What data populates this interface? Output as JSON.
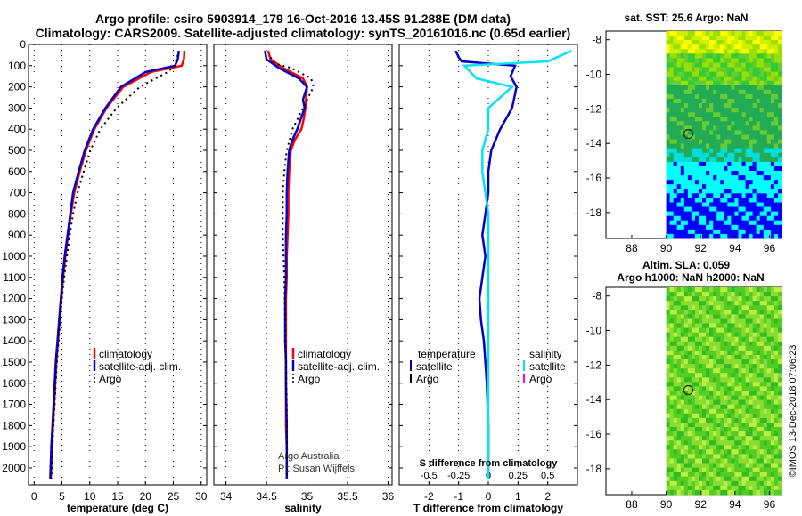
{
  "header": {
    "title_line1": "Argo profile: csiro 5903914_179 16-Oct-2016 13.45S 91.288E (DM data)",
    "title_line2": "Climatology: CARS2009. Satellite-adjusted climatology: synTS_20161016.nc (0.65d earlier)"
  },
  "watermark": "©IMOS 13-Dec-2018 07:06:23",
  "colors": {
    "climatology": "#ff0000",
    "satellite": "#0000cc",
    "argo": "#000000",
    "sal_satellite": "#00e5ee",
    "sal_argo": "#ff00ff"
  },
  "chart_data": [
    {
      "type": "line",
      "id": "temperature",
      "xlabel": "temperature (deg C)",
      "xlim": [
        -1,
        31
      ],
      "ylim": [
        2080,
        0
      ],
      "xticks": [
        0,
        5,
        10,
        15,
        20,
        25,
        30
      ],
      "yticks": [
        0,
        100,
        200,
        300,
        400,
        500,
        600,
        700,
        800,
        900,
        1000,
        1100,
        1200,
        1300,
        1400,
        1500,
        1600,
        1700,
        1800,
        1900,
        2000
      ],
      "legend": [
        "climatology",
        "satellite-adj. clim.",
        "Argo"
      ],
      "series": [
        {
          "name": "climatology",
          "style": "red",
          "x": [
            27.0,
            26.9,
            26.5,
            21.0,
            16.0,
            13.0,
            10.8,
            9.3,
            8.2,
            7.2,
            6.6,
            6.1,
            5.6,
            5.2,
            4.9,
            4.6,
            4.3,
            4.0,
            3.8,
            3.6,
            3.4,
            3.2,
            3.0
          ],
          "y": [
            30,
            70,
            100,
            130,
            200,
            300,
            400,
            500,
            600,
            700,
            800,
            900,
            1000,
            1100,
            1200,
            1300,
            1400,
            1500,
            1600,
            1700,
            1800,
            1900,
            2050
          ]
        },
        {
          "name": "satellite-adj. clim.",
          "style": "blue",
          "x": [
            26.0,
            25.8,
            25.3,
            20.0,
            15.6,
            12.8,
            10.6,
            9.1,
            8.0,
            7.0,
            6.5,
            6.0,
            5.5,
            5.1,
            4.8,
            4.5,
            4.2,
            3.9,
            3.7,
            3.5,
            3.3,
            3.1,
            2.9
          ],
          "y": [
            30,
            70,
            100,
            130,
            200,
            300,
            400,
            500,
            600,
            700,
            800,
            900,
            1000,
            1100,
            1200,
            1300,
            1400,
            1500,
            1600,
            1700,
            1800,
            1900,
            2050
          ]
        },
        {
          "name": "Argo",
          "style": "black",
          "x": [
            25.8,
            25.6,
            25.2,
            24.0,
            19.0,
            14.8,
            11.9,
            10.1,
            8.9,
            7.8,
            7.0,
            6.4,
            5.9,
            5.4,
            5.0,
            4.7,
            4.4,
            4.1,
            3.9,
            3.7,
            3.5,
            3.3,
            3.1
          ],
          "y": [
            50,
            70,
            100,
            130,
            200,
            300,
            400,
            500,
            600,
            700,
            800,
            900,
            1000,
            1100,
            1200,
            1300,
            1400,
            1500,
            1600,
            1700,
            1800,
            1900,
            2050
          ]
        }
      ]
    },
    {
      "type": "line",
      "id": "salinity",
      "xlabel": "salinity",
      "xlim": [
        33.85,
        36.05
      ],
      "ylim": [
        2080,
        0
      ],
      "xticks": [
        34,
        34.5,
        35,
        35.5,
        36
      ],
      "legend": [
        "climatology",
        "satellite-adj. clim.",
        "Argo"
      ],
      "annotation": [
        "Argo Australia",
        "PI: Susan Wijffels"
      ],
      "series": [
        {
          "name": "climatology",
          "style": "red",
          "x": [
            34.52,
            34.55,
            34.7,
            34.95,
            35.0,
            34.98,
            34.96,
            34.93,
            34.85,
            34.8,
            34.78,
            34.77,
            34.77,
            34.76,
            34.75,
            34.75,
            34.74,
            34.74,
            34.74,
            34.74,
            34.74,
            34.74,
            34.75,
            34.75
          ],
          "y": [
            30,
            70,
            110,
            160,
            200,
            300,
            350,
            400,
            450,
            500,
            600,
            700,
            800,
            900,
            1000,
            1100,
            1200,
            1300,
            1400,
            1500,
            1600,
            1800,
            1900,
            2050
          ]
        },
        {
          "name": "satellite-adj. clim.",
          "style": "blue",
          "x": [
            34.48,
            34.5,
            34.65,
            34.9,
            35.0,
            34.95,
            34.97,
            34.88,
            34.82,
            34.78,
            34.76,
            34.75,
            34.75,
            34.74,
            34.74,
            34.74,
            34.73,
            34.73,
            34.73,
            34.74,
            34.74,
            34.75,
            34.75
          ],
          "y": [
            30,
            70,
            110,
            160,
            200,
            260,
            300,
            400,
            450,
            500,
            600,
            700,
            800,
            900,
            1000,
            1100,
            1200,
            1300,
            1400,
            1500,
            1600,
            1800,
            2050
          ]
        },
        {
          "name": "Argo",
          "style": "black",
          "x": [
            34.55,
            34.6,
            34.8,
            35.05,
            35.08,
            34.95,
            34.82,
            34.75,
            34.72,
            34.7,
            34.7,
            34.7,
            34.71,
            34.72,
            34.73,
            34.74,
            34.75,
            34.75,
            34.75
          ],
          "y": [
            60,
            90,
            110,
            160,
            200,
            300,
            400,
            500,
            600,
            700,
            800,
            900,
            1000,
            1100,
            1300,
            1500,
            1700,
            1900,
            2050
          ]
        }
      ]
    },
    {
      "type": "line",
      "id": "difference",
      "xlabel": "T difference from climatology",
      "xlabel2": "S difference from climatology",
      "xlim": [
        -3,
        3
      ],
      "ylim": [
        2080,
        0
      ],
      "xticks": [
        -2,
        -1,
        0,
        1,
        2
      ],
      "xticks2": [
        -0.5,
        -0.25,
        0,
        0.25,
        0.5
      ],
      "xticks2_labels": [
        "-0.5",
        "-0.25",
        "0",
        "0.25",
        "0.5"
      ],
      "legend_temperature_title": "temperature",
      "legend_salinity_title": "salinity",
      "legend_temperature": [
        "satellite",
        "Argo"
      ],
      "legend_salinity": [
        "satellite",
        "Argo"
      ],
      "series": [
        {
          "name": "temperature satellite",
          "style": "blue",
          "x": [
            -1.1,
            -1.0,
            -0.9,
            0.9,
            0.75,
            0.95,
            0.8,
            0.4,
            0.1,
            0.0,
            0.0,
            -0.1,
            -0.2,
            -0.1,
            -0.2,
            -0.3,
            -0.25,
            -0.15,
            -0.1,
            -0.05,
            0.0,
            0.0
          ],
          "y": [
            30,
            60,
            80,
            100,
            150,
            200,
            300,
            400,
            500,
            600,
            700,
            800,
            900,
            1000,
            1100,
            1200,
            1300,
            1400,
            1500,
            1600,
            1800,
            2050
          ]
        },
        {
          "name": "salinity satellite",
          "style": "cyan",
          "x": [
            0.7,
            0.5,
            -0.2,
            -0.1,
            0.2,
            0.0,
            0.0,
            -0.05,
            -0.05,
            0.0,
            0.0,
            0.0,
            0.0,
            0.0,
            0.0,
            0.0
          ],
          "y": [
            30,
            80,
            100,
            160,
            200,
            300,
            400,
            500,
            600,
            800,
            1000,
            1200,
            1400,
            1600,
            1800,
            2050
          ]
        }
      ]
    },
    {
      "type": "heatmap",
      "id": "sst_map",
      "title": "sat. SST: 25.6 Argo: NaN",
      "xlim": [
        86.5,
        96.7
      ],
      "ylim": [
        -19.5,
        -7.5
      ],
      "xticks": [
        88,
        90,
        92,
        94,
        96
      ],
      "yticks": [
        -8,
        -10,
        -12,
        -14,
        -16,
        -18
      ],
      "marker": [
        91.288,
        -13.45
      ]
    },
    {
      "type": "heatmap",
      "id": "sla_map",
      "title": "Altim. SLA: 0.059",
      "subtitle": "Argo h1000: NaN h2000: NaN",
      "xlim": [
        86.5,
        96.7
      ],
      "ylim": [
        -19.5,
        -7.5
      ],
      "xticks": [
        88,
        90,
        92,
        94,
        96
      ],
      "yticks": [
        -8,
        -10,
        -12,
        -14,
        -16,
        -18
      ],
      "marker": [
        91.288,
        -13.45
      ]
    }
  ]
}
